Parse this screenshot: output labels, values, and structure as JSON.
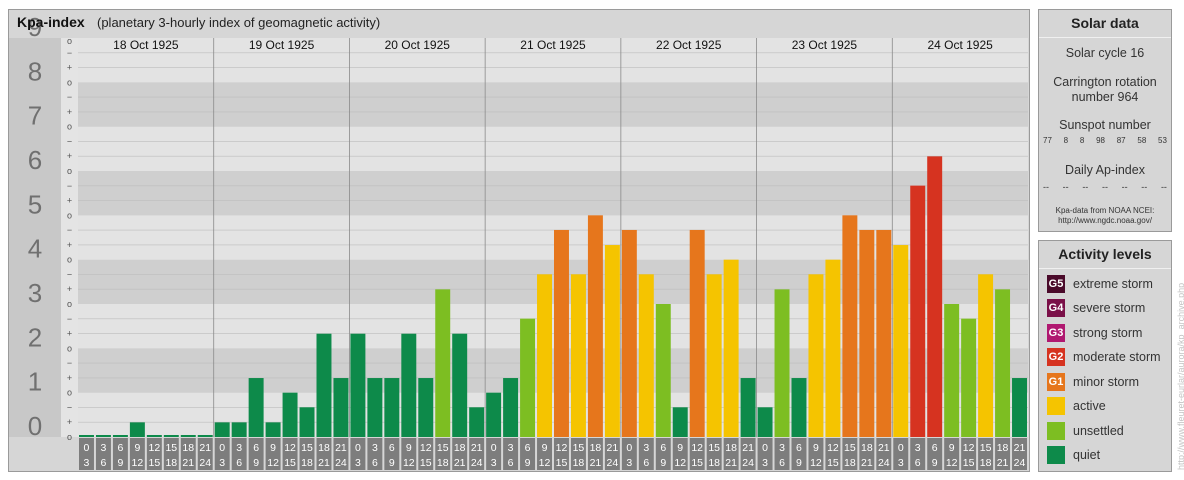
{
  "header": {
    "title": "Kpa-index",
    "subtitle": "(planetary 3-hourly index of geomagnetic activity)"
  },
  "chart_data": {
    "type": "bar",
    "title": "Kpa-index",
    "subtitle": "(planetary 3-hourly index of geomagnetic activity)",
    "ylim": [
      0,
      9
    ],
    "y_ticks": [
      "0",
      "1",
      "2",
      "3",
      "4",
      "5",
      "6",
      "7",
      "8",
      "9"
    ],
    "sub_ticks": [
      "o",
      "+",
      "−"
    ],
    "days": [
      "18 Oct 1925",
      "19 Oct 1925",
      "20 Oct 1925",
      "21 Oct 1925",
      "22 Oct 1925",
      "23 Oct 1925",
      "24 Oct 1925"
    ],
    "interval_labels": [
      [
        "0",
        "3"
      ],
      [
        "3",
        "6"
      ],
      [
        "6",
        "9"
      ],
      [
        "9",
        "12"
      ],
      [
        "12",
        "15"
      ],
      [
        "15",
        "18"
      ],
      [
        "18",
        "21"
      ],
      [
        "21",
        "24"
      ]
    ],
    "values": [
      [
        0,
        0,
        0,
        0.33,
        0,
        0,
        0,
        0
      ],
      [
        0.33,
        0.33,
        1.33,
        0.33,
        1,
        0.67,
        2.33,
        1.33
      ],
      [
        2.33,
        1.33,
        1.33,
        2.33,
        1.33,
        3.33,
        2.33,
        0.67
      ],
      [
        1,
        1.33,
        2.67,
        3.67,
        4.67,
        3.67,
        5,
        4.33
      ],
      [
        4.67,
        3.67,
        3,
        0.67,
        4.67,
        3.67,
        4,
        1.33
      ],
      [
        0.67,
        3.33,
        1.33,
        3.67,
        4,
        5,
        4.67,
        4.67
      ],
      [
        4.33,
        5.67,
        6.33,
        3,
        2.67,
        3.67,
        3.33,
        1.33
      ]
    ]
  },
  "solar": {
    "header": "Solar data",
    "cycle": "Solar cycle 16",
    "carrington_line1": "Carrington rotation",
    "carrington_line2": "number 964",
    "sunspot_label": "Sunspot number",
    "sunspots": [
      "77",
      "8",
      "8",
      "98",
      "87",
      "58",
      "53"
    ],
    "ap_label": "Daily Ap-index",
    "ap_values": [
      "--",
      "--",
      "--",
      "--",
      "--",
      "--",
      "--"
    ],
    "source_line1": "Kpa-data from NOAA NCEI:",
    "source_line2": "http://www.ngdc.noaa.gov/"
  },
  "activity": {
    "header": "Activity levels",
    "levels": [
      {
        "code": "G5",
        "label": "extreme storm",
        "color": "#4a0a2a"
      },
      {
        "code": "G4",
        "label": "severe storm",
        "color": "#7a1048"
      },
      {
        "code": "G3",
        "label": "strong storm",
        "color": "#b01870"
      },
      {
        "code": "G2",
        "label": "moderate storm",
        "color": "#d63320"
      },
      {
        "code": "G1",
        "label": "minor storm",
        "color": "#e6761c"
      },
      {
        "code": "",
        "label": "active",
        "color": "#f5c400"
      },
      {
        "code": "",
        "label": "unsettled",
        "color": "#7dbe22"
      },
      {
        "code": "",
        "label": "quiet",
        "color": "#0d8a4a"
      }
    ]
  },
  "credit": "http://www.fleuret-eurlar/aurora/kp_archive.php",
  "colors": {
    "quiet": "#0d8a4a",
    "unsettled": "#7dbe22",
    "active": "#f5c400",
    "minor_storm": "#e6761c",
    "moderate_storm": "#d63320",
    "panel_bg": "#d6d6d6",
    "interval_box": "#7d7d7d"
  }
}
